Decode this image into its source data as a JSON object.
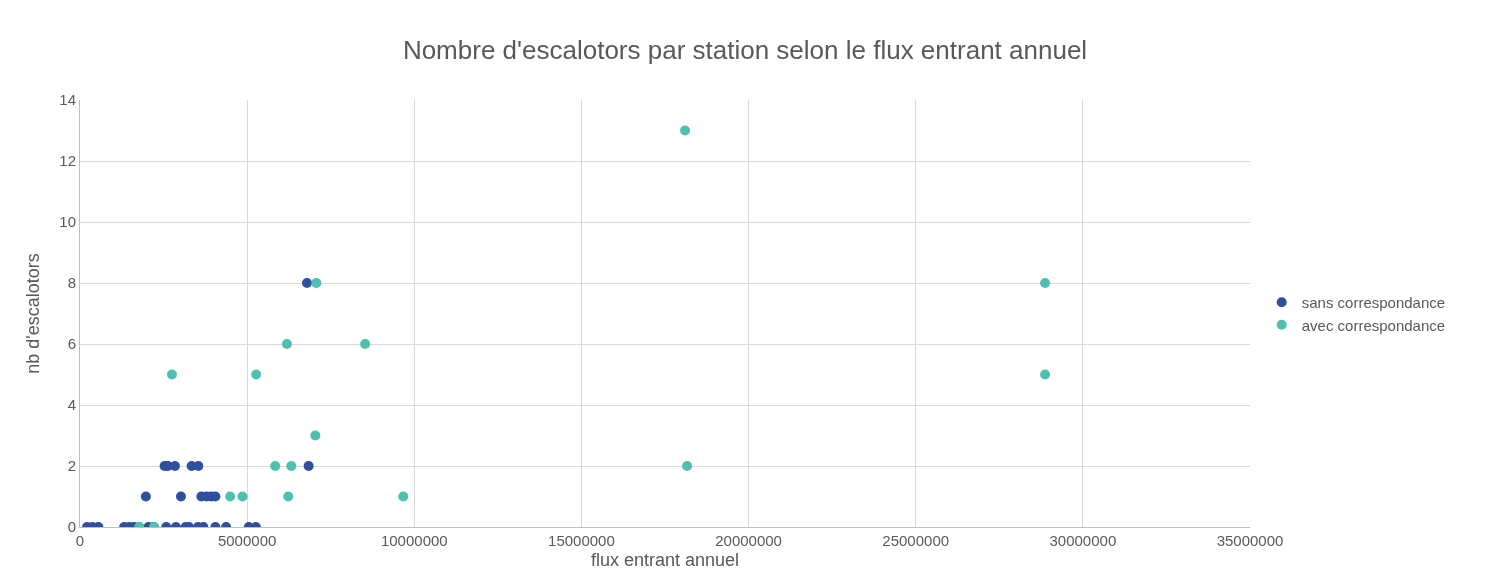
{
  "chart_data": {
    "type": "scatter",
    "title": "Nombre d'escalotors par station selon le flux entrant annuel",
    "xlabel": "flux entrant annuel",
    "ylabel": "nb d'escalotors",
    "xlim": [
      0,
      35000000
    ],
    "xticks": [
      0,
      5000000,
      10000000,
      15000000,
      20000000,
      25000000,
      30000000,
      35000000
    ],
    "ylim": [
      0,
      14
    ],
    "yticks": [
      0,
      2,
      4,
      6,
      8,
      10,
      12,
      14
    ],
    "grid": true,
    "legend": "right",
    "marker": "circle",
    "series": [
      {
        "name": "sans correspondance",
        "color": "#2f4f9f",
        "x": [
          210000,
          370000,
          550000,
          1320000,
          1470000,
          1610000,
          1770000,
          2050000,
          2210000,
          2580000,
          2870000,
          3160000,
          3260000,
          3530000,
          3690000,
          4050000,
          4370000,
          5050000,
          5260000,
          1970000,
          3020000,
          3630000,
          3790000,
          3930000,
          4050000,
          2530000,
          2630000,
          2840000,
          3340000,
          3540000,
          6840000,
          6790000
        ],
        "values": [
          0,
          0,
          0,
          0,
          0,
          0,
          0,
          0,
          0,
          0,
          0,
          0,
          0,
          0,
          0,
          0,
          0,
          0,
          0,
          1,
          1,
          1,
          1,
          1,
          1,
          2,
          2,
          2,
          2,
          2,
          2,
          8
        ]
      },
      {
        "name": "avec correspondance",
        "color": "#4fbfb0",
        "x": [
          1770000,
          2210000,
          4490000,
          4860000,
          6230000,
          9670000,
          5840000,
          6320000,
          2750000,
          7070000,
          6190000,
          8530000,
          5270000,
          7040000,
          18100000,
          18160000,
          28870000,
          28870000
        ],
        "values": [
          0,
          0,
          1,
          1,
          1,
          1,
          2,
          2,
          5,
          8,
          6,
          6,
          5,
          3,
          13,
          2,
          8,
          5
        ]
      }
    ]
  }
}
